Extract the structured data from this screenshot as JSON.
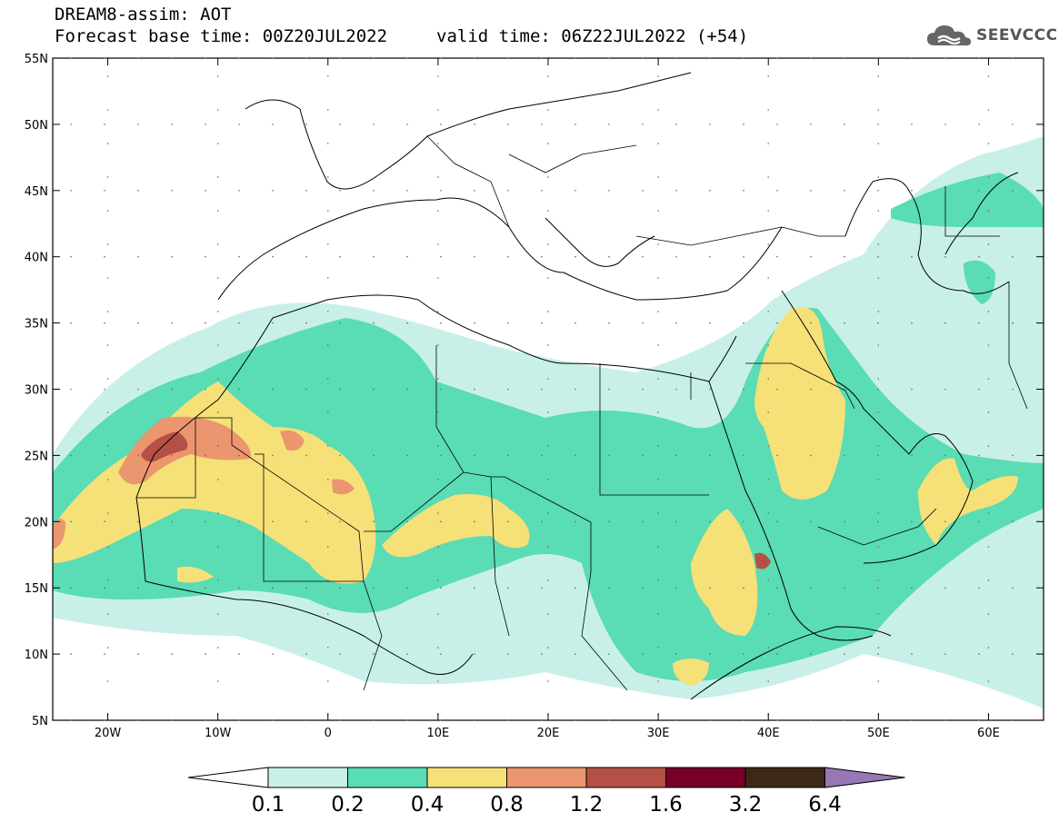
{
  "header": {
    "line1": "DREAM8-assim: AOT",
    "line2": "Forecast base time: 00Z20JUL2022",
    "valid": "valid time: 06Z22JUL2022 (+54)",
    "logo_text": "SEEVCCC"
  },
  "map": {
    "lon_range": [
      -25,
      65
    ],
    "lat_range": [
      5,
      55
    ],
    "x_ticks": [
      {
        "lon": -20,
        "label": "20W"
      },
      {
        "lon": -10,
        "label": "10W"
      },
      {
        "lon": 0,
        "label": "0"
      },
      {
        "lon": 10,
        "label": "10E"
      },
      {
        "lon": 20,
        "label": "20E"
      },
      {
        "lon": 30,
        "label": "30E"
      },
      {
        "lon": 40,
        "label": "40E"
      },
      {
        "lon": 50,
        "label": "50E"
      },
      {
        "lon": 60,
        "label": "60E"
      }
    ],
    "y_ticks": [
      {
        "lat": 55,
        "label": "55N"
      },
      {
        "lat": 50,
        "label": "50N"
      },
      {
        "lat": 45,
        "label": "45N"
      },
      {
        "lat": 40,
        "label": "40N"
      },
      {
        "lat": 35,
        "label": "35N"
      },
      {
        "lat": 30,
        "label": "30N"
      },
      {
        "lat": 25,
        "label": "25N"
      },
      {
        "lat": 20,
        "label": "20N"
      },
      {
        "lat": 15,
        "label": "15N"
      },
      {
        "lat": 10,
        "label": "10N"
      },
      {
        "lat": 5,
        "label": "5N"
      }
    ]
  },
  "colorbar": {
    "labels": [
      "0.1",
      "0.2",
      "0.4",
      "0.8",
      "1.2",
      "1.6",
      "3.2",
      "6.4"
    ],
    "colors": [
      "#ffffff",
      "#c8f0e8",
      "#5adcb4",
      "#f5e178",
      "#eb966e",
      "#b45046",
      "#780028",
      "#3c2814",
      "#9678b4"
    ]
  }
}
